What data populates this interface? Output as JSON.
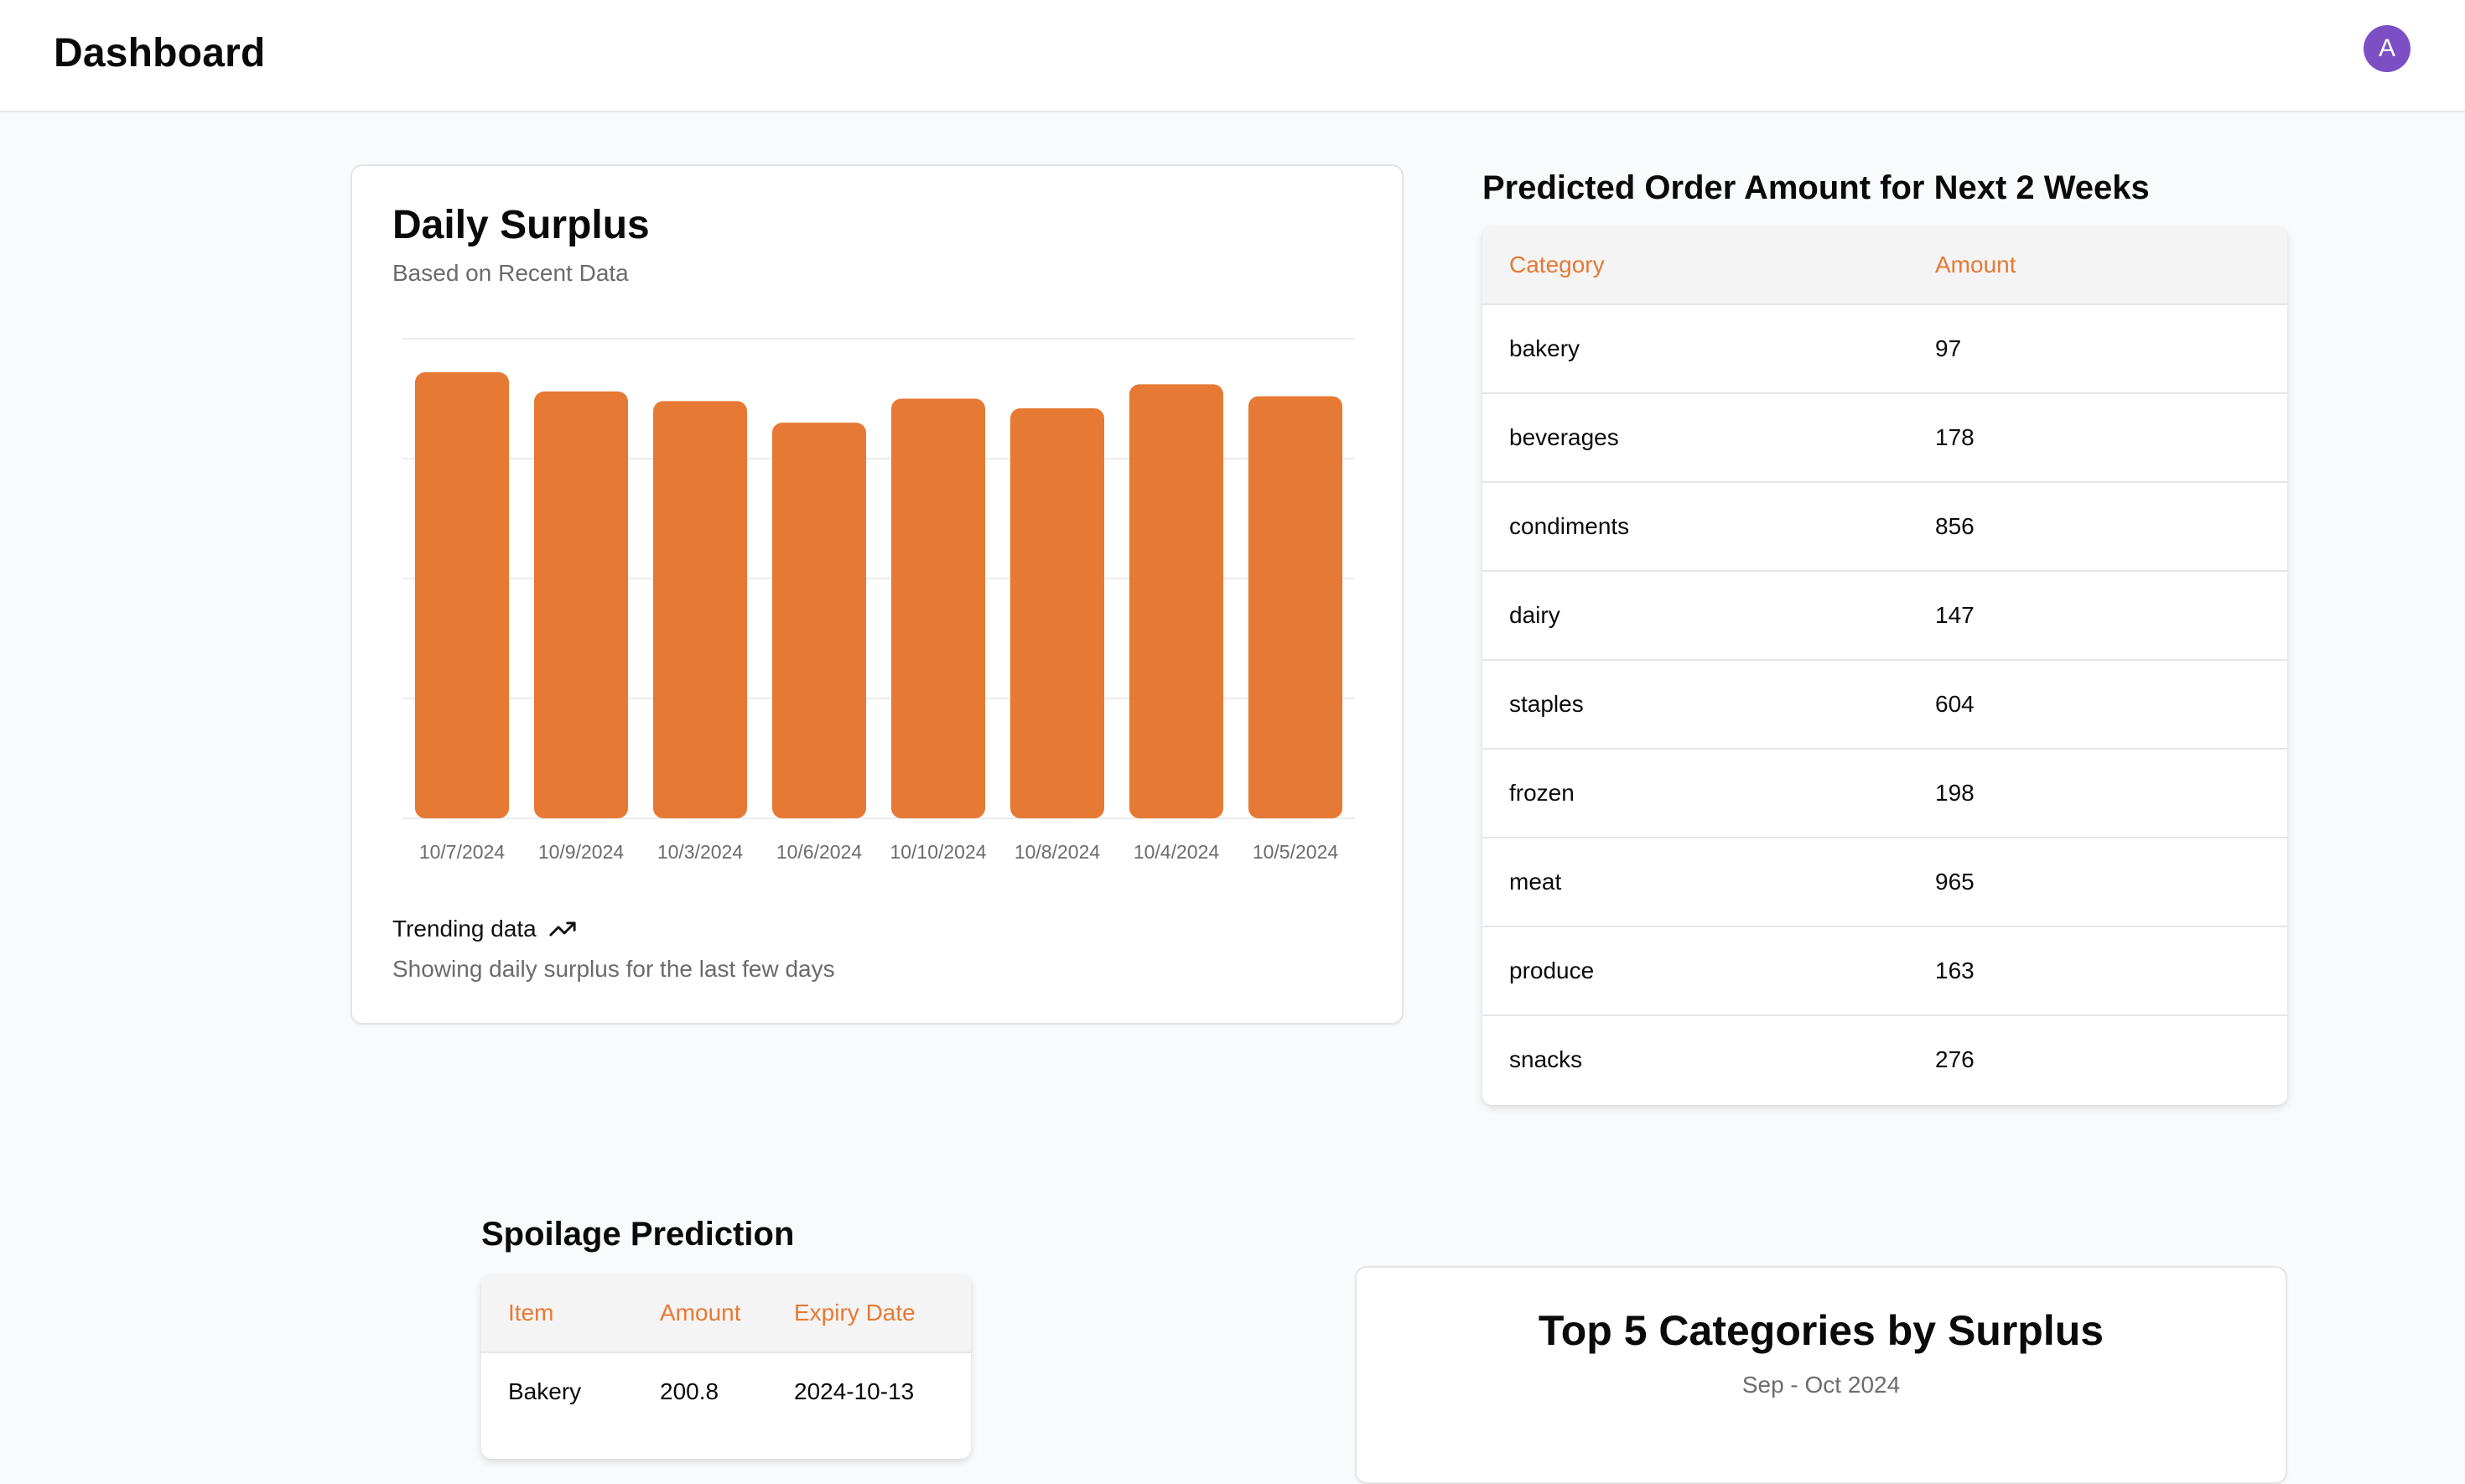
{
  "header": {
    "title": "Dashboard",
    "avatar_initial": "A"
  },
  "daily_surplus": {
    "title": "Daily Surplus",
    "subtitle": "Based on Recent Data",
    "trend_label": "Trending data",
    "trend_description": "Showing daily surplus for the last few days",
    "bar_color": "#e67933"
  },
  "chart_data": {
    "type": "bar",
    "title": "Daily Surplus",
    "subtitle": "Based on Recent Data",
    "categories": [
      "10/7/2024",
      "10/9/2024",
      "10/3/2024",
      "10/6/2024",
      "10/10/2024",
      "10/8/2024",
      "10/4/2024",
      "10/5/2024"
    ],
    "values": [
      186,
      178,
      174,
      165,
      175,
      171,
      181,
      176
    ],
    "ylim": [
      0,
      200
    ],
    "grid": true,
    "ylabel": "",
    "xlabel": ""
  },
  "predicted_orders": {
    "title": "Predicted Order Amount for Next 2 Weeks",
    "columns": [
      "Category",
      "Amount"
    ],
    "rows": [
      {
        "category": "bakery",
        "amount": "97"
      },
      {
        "category": "beverages",
        "amount": "178"
      },
      {
        "category": "condiments",
        "amount": "856"
      },
      {
        "category": "dairy",
        "amount": "147"
      },
      {
        "category": "staples",
        "amount": "604"
      },
      {
        "category": "frozen",
        "amount": "198"
      },
      {
        "category": "meat",
        "amount": "965"
      },
      {
        "category": "produce",
        "amount": "163"
      },
      {
        "category": "snacks",
        "amount": "276"
      }
    ]
  },
  "spoilage": {
    "title": "Spoilage Prediction",
    "columns": [
      "Item",
      "Amount",
      "Expiry Date"
    ],
    "rows": [
      {
        "item": "Bakery",
        "amount": "200.8",
        "expiry": "2024-10-13"
      }
    ]
  },
  "top5": {
    "title": "Top 5 Categories by Surplus",
    "subtitle": "Sep - Oct 2024"
  },
  "colors": {
    "accent": "#e67933",
    "avatar": "#7c4fc4"
  }
}
